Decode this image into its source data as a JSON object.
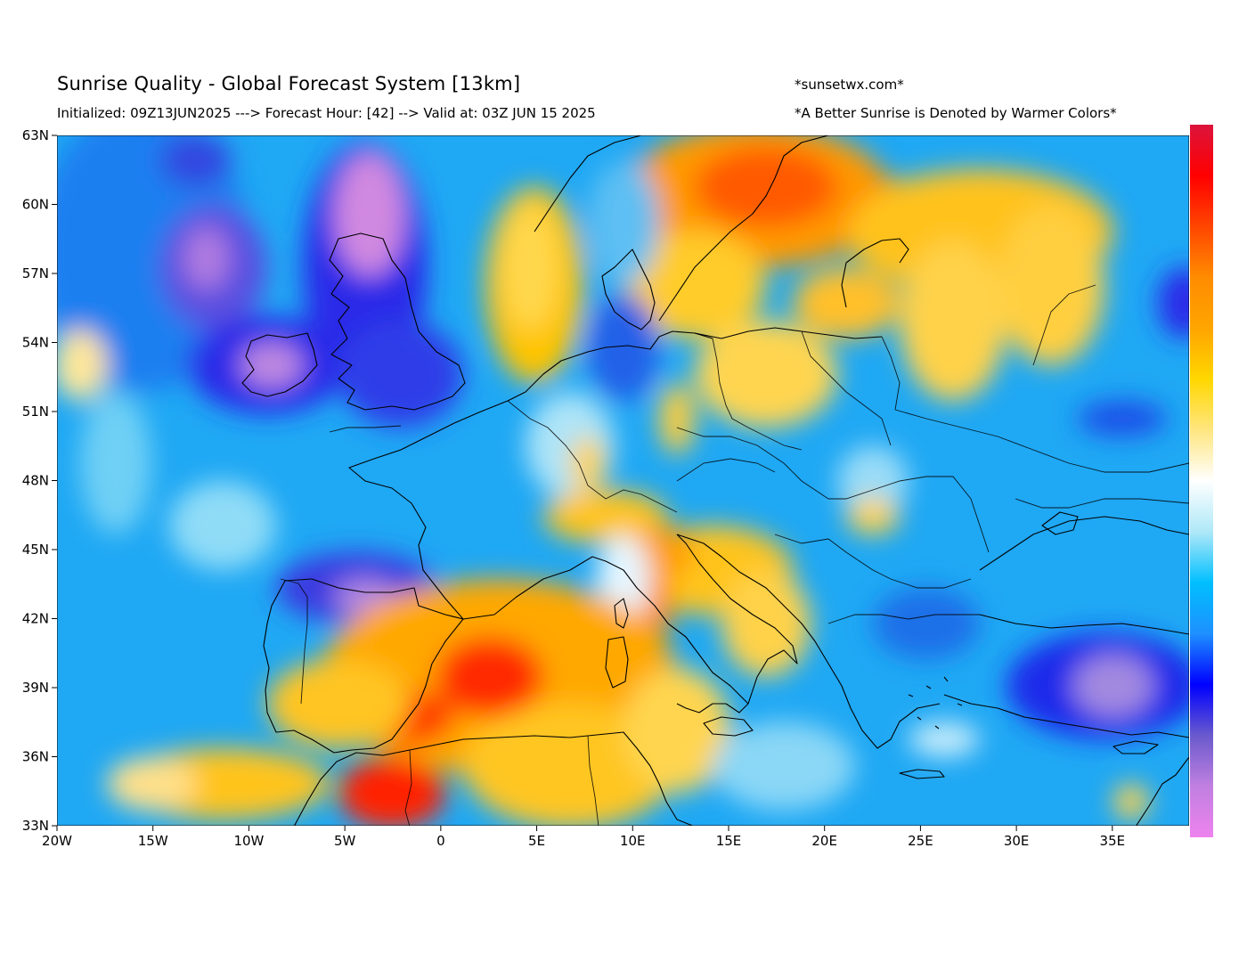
{
  "header": {
    "title": "Sunrise Quality - Global Forecast System [13km]",
    "subtitle": "Initialized: 09Z13JUN2025 ---> Forecast Hour: [42] --> Valid at: 03Z JUN 15 2025",
    "site": "*sunsetwx.com*",
    "note": "*A Better Sunrise is Denoted by Warmer Colors*"
  },
  "map": {
    "region": "Europe, North Africa and Near East",
    "lon_range": [
      -20,
      39
    ],
    "lat_range": [
      33,
      63
    ],
    "lat_ticks": [
      "63N",
      "60N",
      "57N",
      "54N",
      "51N",
      "48N",
      "45N",
      "42N",
      "39N",
      "36N",
      "33N"
    ],
    "lon_ticks": [
      "20W",
      "15W",
      "10W",
      "5W",
      "0",
      "5E",
      "10E",
      "15E",
      "20E",
      "25E",
      "30E",
      "35E"
    ],
    "colorbar_colors": [
      "#dc143c",
      "#ff0000",
      "#ff4500",
      "#ff8c00",
      "#ffa500",
      "#ffd700",
      "#ffe680",
      "#ffffff",
      "#aee8f8",
      "#00bfff",
      "#1e90ff",
      "#0000ff",
      "#6a5acd",
      "#c080e0",
      "#ee82ee"
    ]
  }
}
